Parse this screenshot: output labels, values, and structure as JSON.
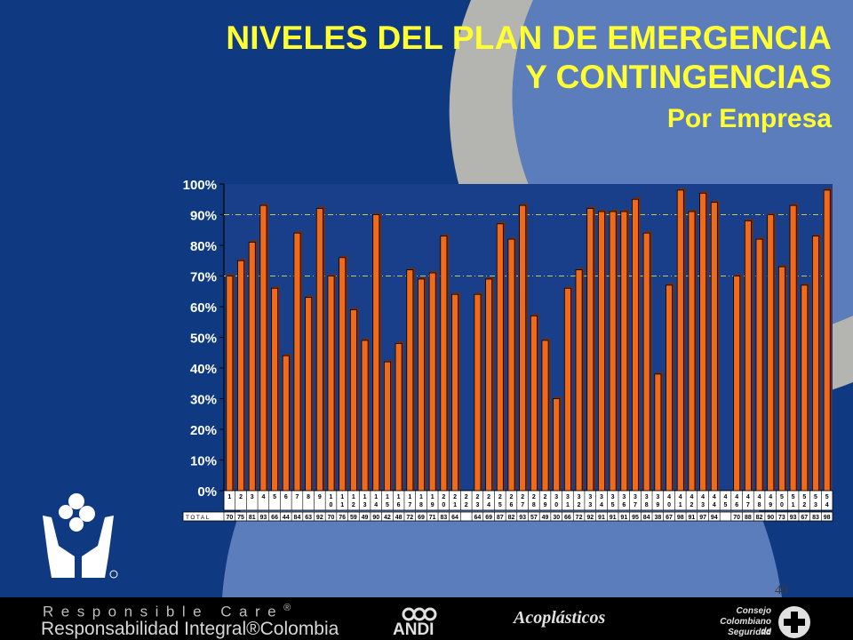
{
  "slide": {
    "title_line1": "NIVELES DEL PLAN DE EMERGENCIA",
    "title_line2": "Y CONTINGENCIAS",
    "subtitle": "Por Empresa",
    "page_number": "49"
  },
  "footer": {
    "rc_line1": "Responsible Care",
    "rc_reg": "®",
    "rc_line2": "Responsabilidad Integral®Colombia",
    "andi": "ANDI",
    "acoplasticos": "Acoplásticos",
    "ccs_line1": "Consejo",
    "ccs_line2": "Colombiano de",
    "ccs_line3": "Seguridad"
  },
  "colors": {
    "background": "#0f3a82",
    "title": "#ffff33",
    "bar": "#f06a1c",
    "bar_outline": "#000000",
    "plot": "#1a3f8a"
  },
  "icons": [
    "hands-logo-icon",
    "andi-logo-icon",
    "ccs-cross-logo-icon"
  ],
  "chart_data": {
    "type": "bar",
    "title": "",
    "xlabel": "",
    "ylabel": "",
    "ylim": [
      0,
      100
    ],
    "y_ticks": [
      "0%",
      "10%",
      "20%",
      "30%",
      "40%",
      "50%",
      "60%",
      "70%",
      "80%",
      "90%",
      "100%"
    ],
    "grid": false,
    "reference_lines": [
      70,
      90
    ],
    "table_row_label": "TOTAL",
    "categories": [
      "1",
      "2",
      "3",
      "4",
      "5",
      "6",
      "7",
      "8",
      "9",
      "10",
      "11",
      "12",
      "13",
      "14",
      "15",
      "16",
      "17",
      "18",
      "19",
      "20",
      "21",
      "22",
      "23",
      "24",
      "25",
      "26",
      "27",
      "28",
      "29",
      "30",
      "31",
      "32",
      "33",
      "34",
      "35",
      "36",
      "37",
      "38",
      "39",
      "40",
      "41",
      "42",
      "43",
      "44",
      "45",
      "46",
      "47",
      "48",
      "49",
      "50",
      "51",
      "52",
      "53",
      "54"
    ],
    "values": [
      70,
      75,
      81,
      93,
      66,
      44,
      84,
      63,
      92,
      70,
      76,
      59,
      49,
      90,
      42,
      48,
      72,
      69,
      71,
      83,
      64,
      null,
      64,
      69,
      87,
      82,
      93,
      57,
      49,
      30,
      66,
      72,
      92,
      91,
      91,
      91,
      95,
      84,
      38,
      67,
      98,
      91,
      97,
      94,
      null,
      70,
      88,
      82,
      90,
      73,
      93,
      67,
      83,
      98
    ]
  }
}
